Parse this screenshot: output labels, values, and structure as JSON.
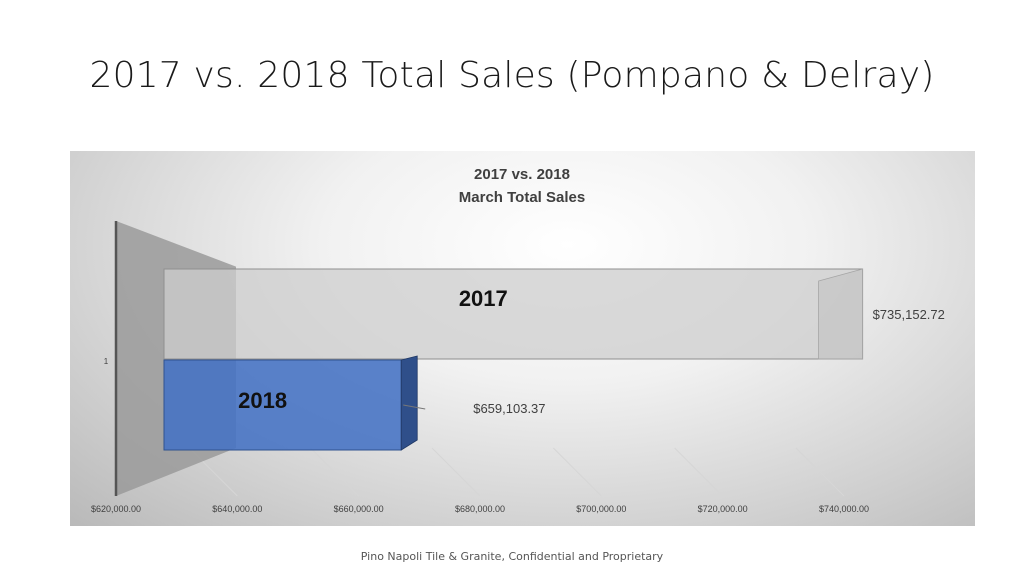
{
  "slide": {
    "title": "2017 vs. 2018 Total Sales (Pompano & Delray)",
    "footer": "Pino Napoli Tile & Granite, Confidential and Proprietary"
  },
  "chart_data": {
    "type": "bar",
    "orientation": "horizontal",
    "style": "3d",
    "title": "2017 vs. 2018",
    "subtitle": "March Total Sales",
    "categories": [
      "1"
    ],
    "series": [
      {
        "name": "2017",
        "values": [
          735152.72
        ],
        "data_label": "$735,152.72",
        "color": "#c2c2c2"
      },
      {
        "name": "2018",
        "values": [
          659103.37
        ],
        "data_label": "$659,103.37",
        "color": "#4472c4"
      }
    ],
    "xlim": [
      620000,
      740000
    ],
    "x_ticks": [
      {
        "value": 620000,
        "label": "$620,000.00"
      },
      {
        "value": 640000,
        "label": "$640,000.00"
      },
      {
        "value": 660000,
        "label": "$660,000.00"
      },
      {
        "value": 680000,
        "label": "$680,000.00"
      },
      {
        "value": 700000,
        "label": "$700,000.00"
      },
      {
        "value": 720000,
        "label": "$720,000.00"
      },
      {
        "value": 740000,
        "label": "$740,000.00"
      }
    ],
    "grid": true,
    "legend": "none"
  }
}
